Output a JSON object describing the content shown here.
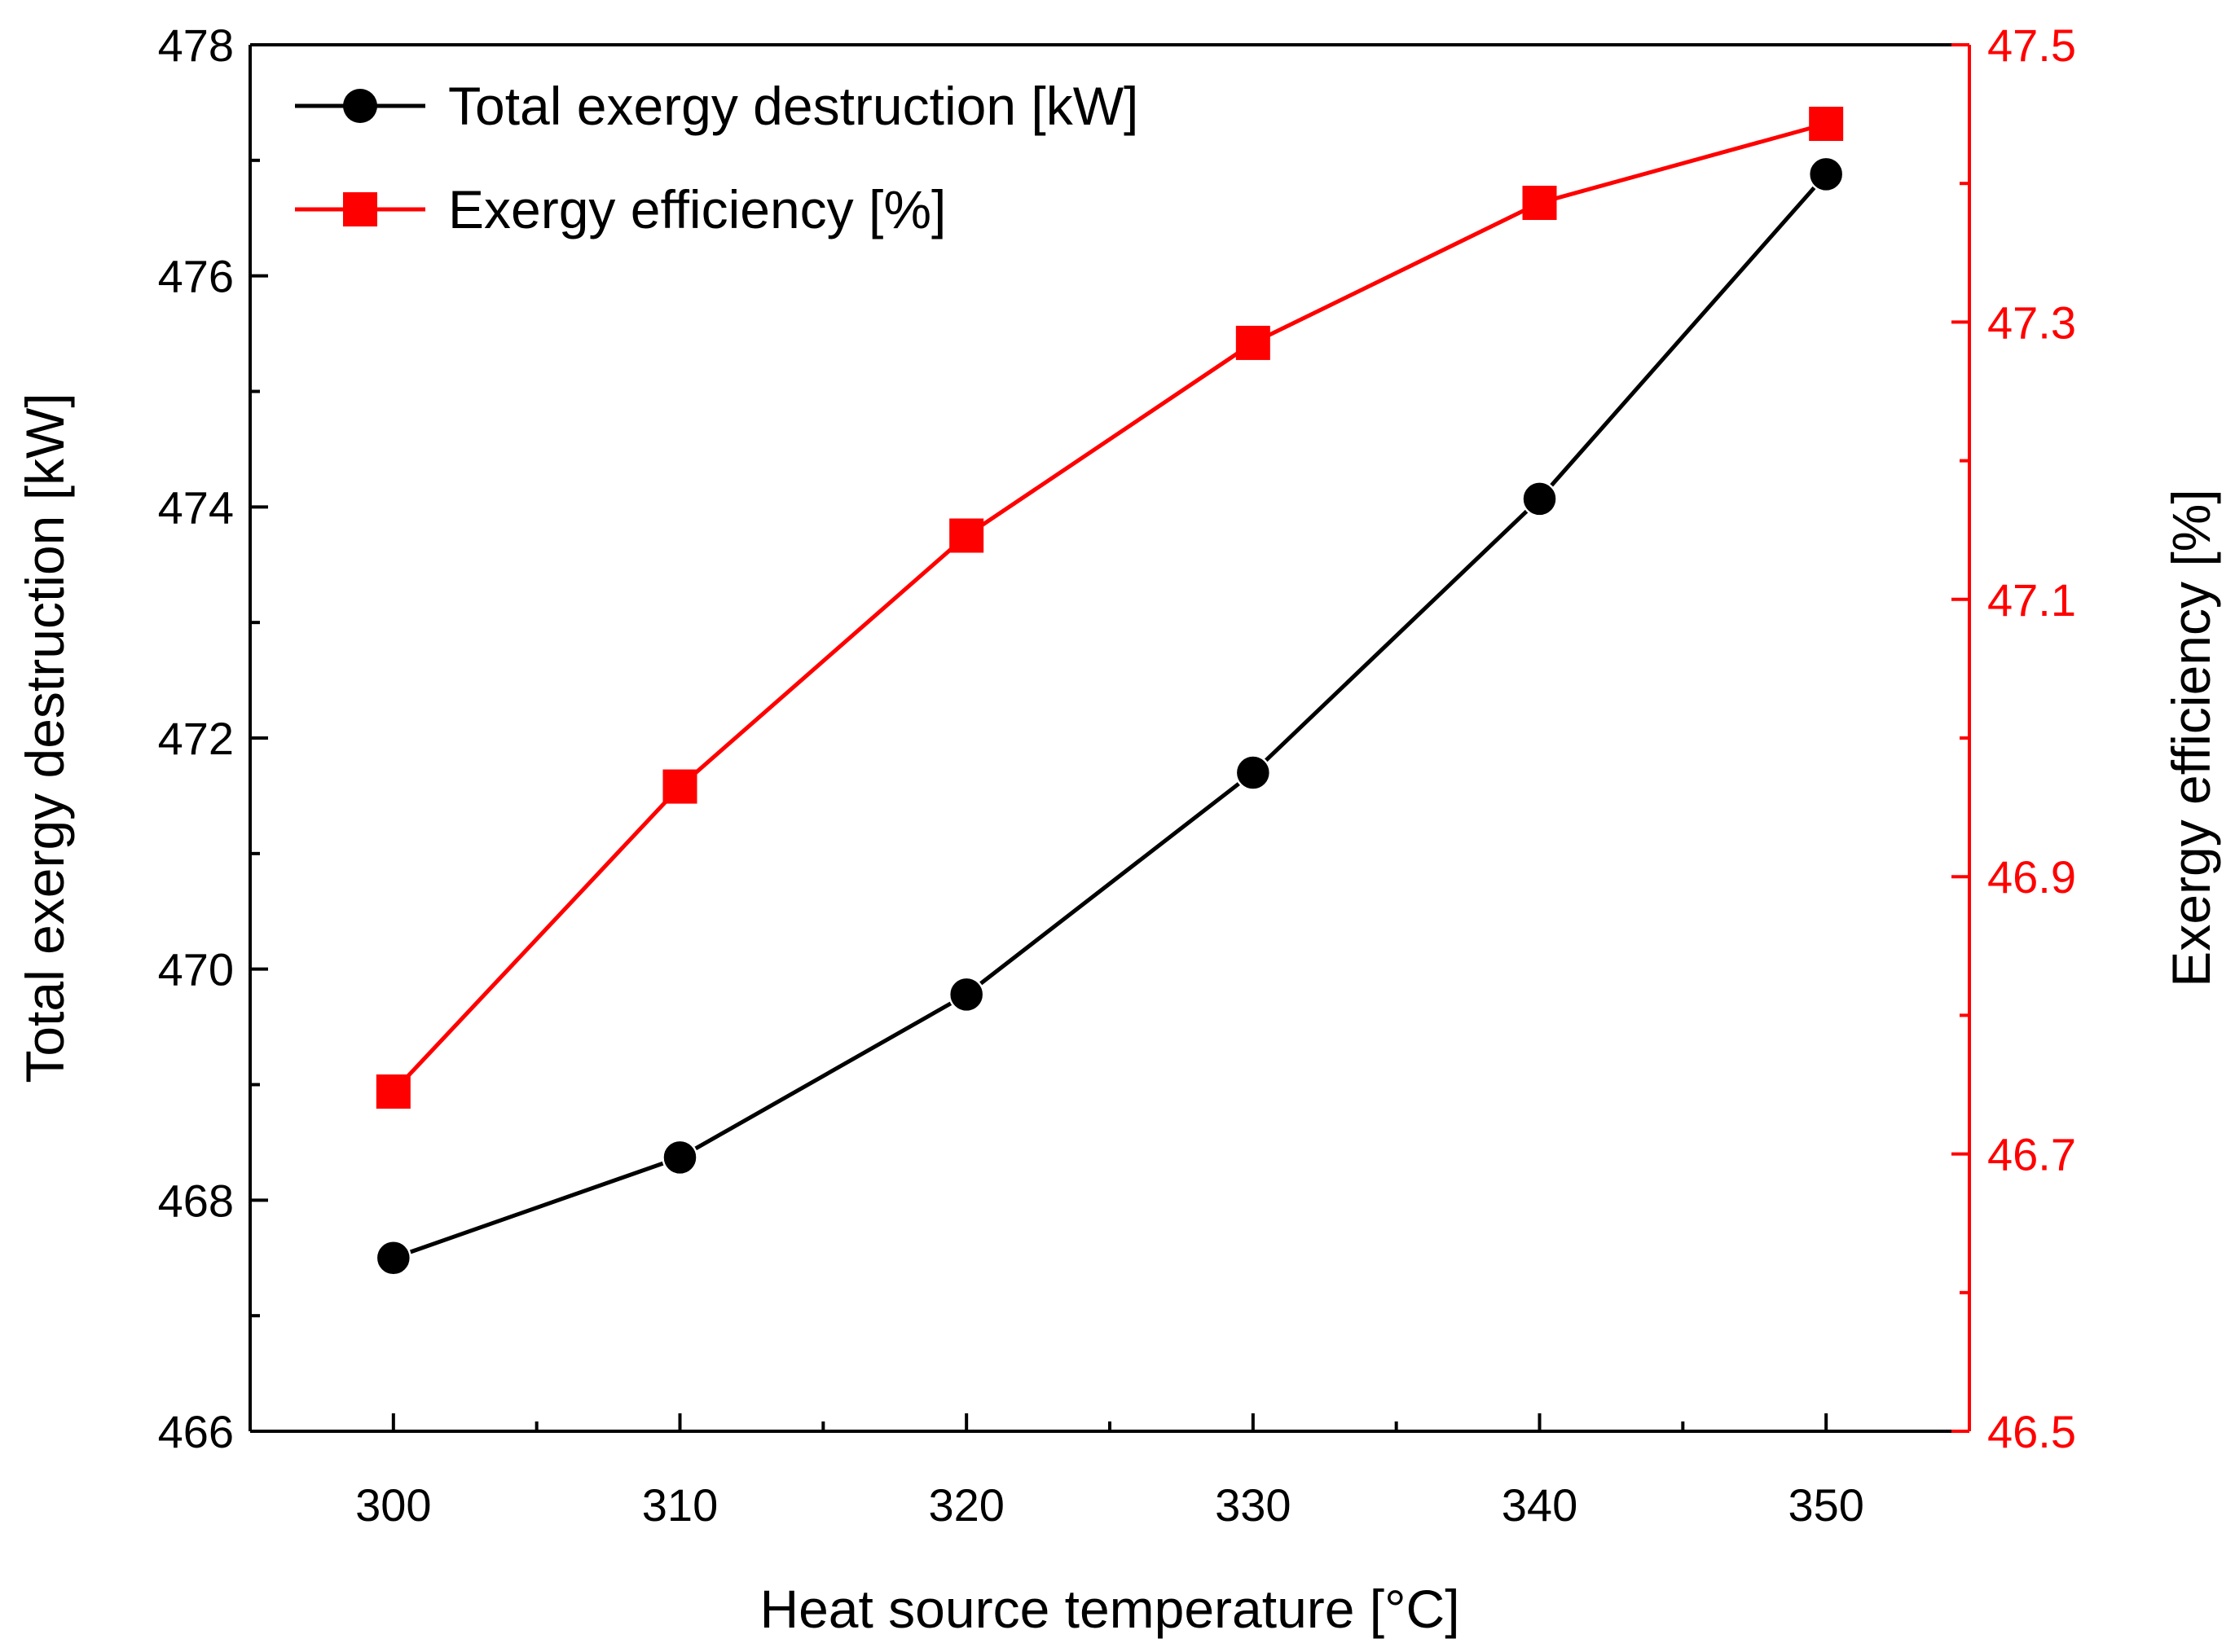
{
  "chart_data": {
    "type": "line",
    "title": "",
    "xlabel": "Heat source temperature [°C]",
    "ylabel": "Total exergy destruction [kW]",
    "y2label": "Exergy efficiency [%]",
    "x": [
      300,
      310,
      320,
      330,
      340,
      350
    ],
    "xlim": [
      295,
      355
    ],
    "xticks": [
      "300",
      "310",
      "320",
      "330",
      "340",
      "350"
    ],
    "ylim": [
      466,
      478
    ],
    "yticks": [
      "466",
      "468",
      "470",
      "472",
      "474",
      "476",
      "478"
    ],
    "y2lim": [
      46.5,
      47.5
    ],
    "y2ticks": [
      "46.5",
      "46.7",
      "46.9",
      "47.1",
      "47.3",
      "47.5"
    ],
    "grid": false,
    "legend_position": "top-left",
    "series": [
      {
        "name": "Total exergy destruction [kW]",
        "axis": "left",
        "marker": "circle",
        "color": "#000000",
        "values": [
          467.5,
          468.37,
          469.78,
          471.7,
          474.07,
          476.88
        ]
      },
      {
        "name": "Exergy efficiency [%]",
        "axis": "right",
        "marker": "square",
        "color": "#ff0000",
        "values": [
          46.745,
          46.965,
          47.146,
          47.285,
          47.386,
          47.443
        ]
      }
    ]
  }
}
